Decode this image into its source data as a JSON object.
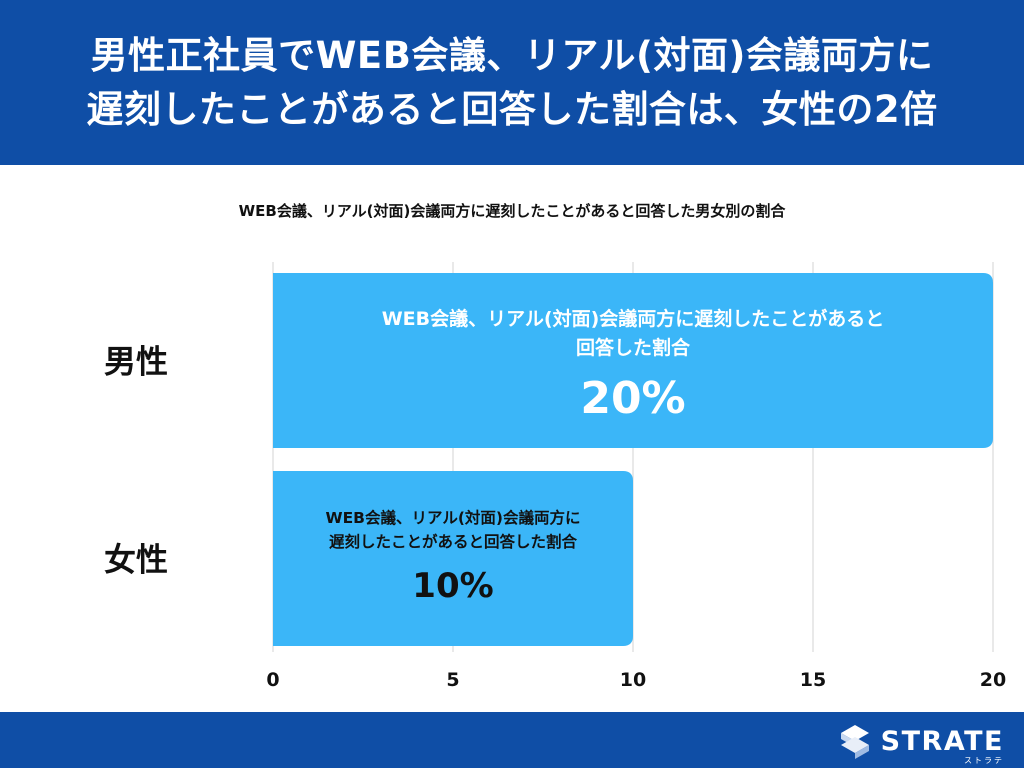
{
  "header": {
    "title_line1": "男性正社員でWEB会議、リアル(対面)会議両方に",
    "title_line2": "遅刻したことがあると回答した割合は、女性の2倍"
  },
  "footer": {
    "logo_text": "STRATE",
    "logo_kana": "ストラテ"
  },
  "colors": {
    "brand": "#0f4ea6",
    "bar": "#3bb6f8",
    "grid": "#d3d3d3"
  },
  "chart_data": {
    "type": "bar",
    "orientation": "horizontal",
    "title": "WEB会議、リアル(対面)会議両方に遅刻したことがあると回答した男女別の割合",
    "categories": [
      "男性",
      "女性"
    ],
    "values": [
      20,
      10
    ],
    "bar_labels": [
      {
        "lines": [
          "WEB会議、リアル(対面)会議両方に遅刻したことがあると",
          "回答した割合"
        ],
        "value": "20%"
      },
      {
        "lines": [
          "WEB会議、リアル(対面)会議両方に",
          "遅刻したことがあると回答した割合"
        ],
        "value": "10%"
      }
    ],
    "xlim": [
      0,
      20
    ],
    "xticks": [
      0,
      5,
      10,
      15,
      20
    ],
    "grid": true
  }
}
